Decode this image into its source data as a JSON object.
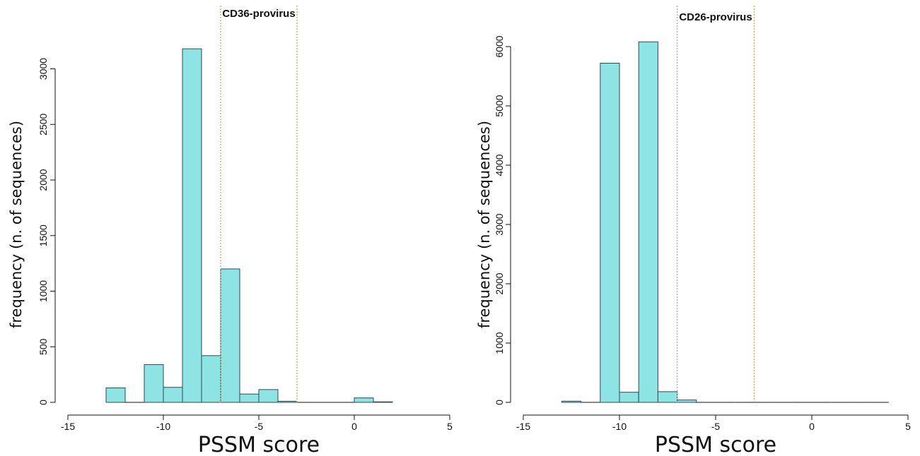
{
  "chart_data": [
    {
      "type": "bar",
      "title": "CD36-provirus",
      "xlabel": "PSSM score",
      "ylabel": "frequency (n. of sequences)",
      "xlim": [
        -15,
        5
      ],
      "ylim": [
        0,
        3200
      ],
      "x_ticks": [
        "-15",
        "-10",
        "-5",
        "0",
        "5"
      ],
      "y_ticks": [
        "0",
        "500",
        "1000",
        "1500",
        "2000",
        "2500",
        "3000"
      ],
      "bin_width": 1,
      "bins": [
        {
          "x0": -13,
          "x1": -12,
          "value": 130
        },
        {
          "x0": -12,
          "x1": -11,
          "value": 0
        },
        {
          "x0": -11,
          "x1": -10,
          "value": 340
        },
        {
          "x0": -10,
          "x1": -9,
          "value": 135
        },
        {
          "x0": -9,
          "x1": -8,
          "value": 3180
        },
        {
          "x0": -8,
          "x1": -7,
          "value": 420
        },
        {
          "x0": -7,
          "x1": -6,
          "value": 1200
        },
        {
          "x0": -6,
          "x1": -5,
          "value": 75
        },
        {
          "x0": -5,
          "x1": -4,
          "value": 115
        },
        {
          "x0": -4,
          "x1": -3,
          "value": 10
        },
        {
          "x0": -3,
          "x1": -2,
          "value": 0
        },
        {
          "x0": -2,
          "x1": -1,
          "value": 0
        },
        {
          "x0": -1,
          "x1": 0,
          "value": 0
        },
        {
          "x0": 0,
          "x1": 1,
          "value": 40
        },
        {
          "x0": 1,
          "x1": 2,
          "value": 5
        }
      ],
      "threshold_lines": [
        -7,
        -3
      ],
      "grid": false,
      "legend": "none"
    },
    {
      "type": "bar",
      "title": "CD26-provirus",
      "xlabel": "PSSM score",
      "ylabel": "frequency (n. of sequences)",
      "xlim": [
        -15,
        5
      ],
      "ylim": [
        0,
        6000
      ],
      "x_ticks": [
        "-15",
        "-10",
        "-5",
        "0",
        "5"
      ],
      "y_ticks": [
        "0",
        "1000",
        "2000",
        "3000",
        "4000",
        "5000",
        "6000"
      ],
      "bin_width": 1,
      "bins": [
        {
          "x0": -13,
          "x1": -12,
          "value": 20
        },
        {
          "x0": -12,
          "x1": -11,
          "value": 0
        },
        {
          "x0": -11,
          "x1": -10,
          "value": 5720
        },
        {
          "x0": -10,
          "x1": -9,
          "value": 170
        },
        {
          "x0": -9,
          "x1": -8,
          "value": 6080
        },
        {
          "x0": -8,
          "x1": -7,
          "value": 180
        },
        {
          "x0": -7,
          "x1": -6,
          "value": 40
        },
        {
          "x0": -6,
          "x1": -5,
          "value": 0
        },
        {
          "x0": -5,
          "x1": -4,
          "value": 0
        },
        {
          "x0": -4,
          "x1": -3,
          "value": 0
        },
        {
          "x0": -3,
          "x1": -2,
          "value": 0
        },
        {
          "x0": -2,
          "x1": -1,
          "value": 0
        },
        {
          "x0": -1,
          "x1": 0,
          "value": 0
        },
        {
          "x0": 0,
          "x1": 1,
          "value": 0
        },
        {
          "x0": 1,
          "x1": 2,
          "value": 0
        },
        {
          "x0": 2,
          "x1": 3,
          "value": 0
        },
        {
          "x0": 3,
          "x1": 4,
          "value": 0
        }
      ],
      "threshold_lines": [
        -7,
        -3
      ],
      "grid": false,
      "legend": "none"
    }
  ]
}
